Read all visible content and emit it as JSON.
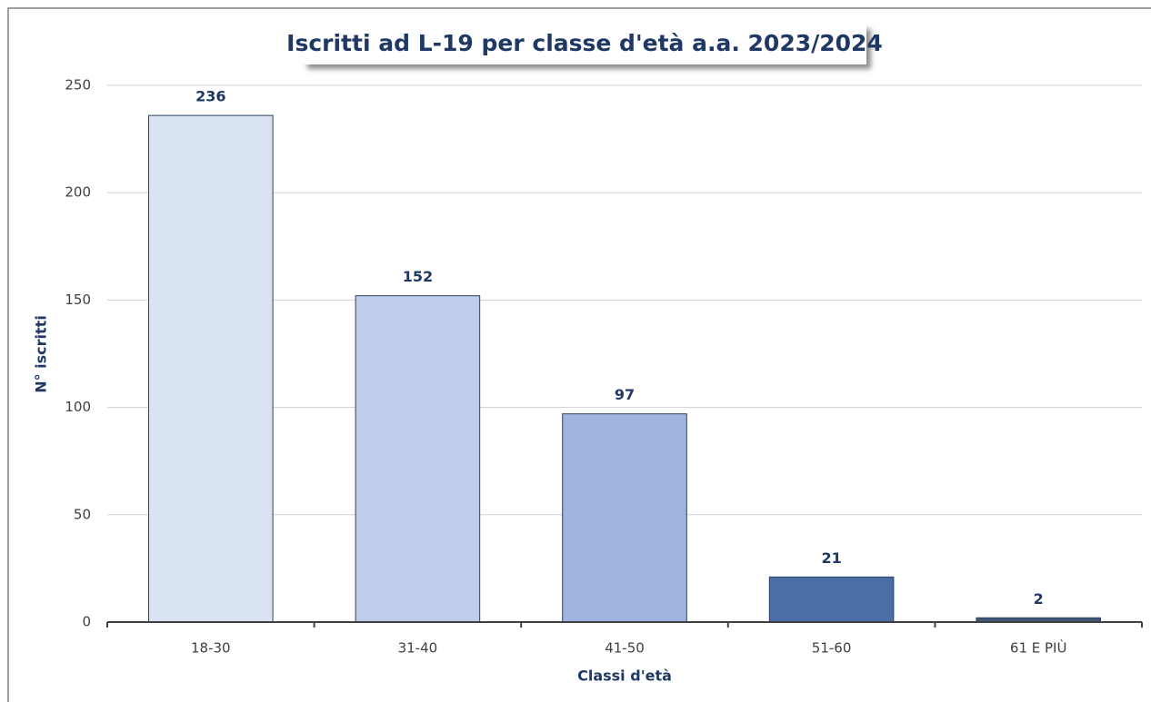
{
  "chart_data": {
    "type": "bar",
    "title": "Iscritti ad L-19 per classe d'età a.a. 2023/2024",
    "x_label": "Classi d'età",
    "y_label": "N° iscritti",
    "categories": [
      "18-30",
      "31-40",
      "41-50",
      "51-60",
      "61 E PIÙ"
    ],
    "values": [
      236,
      152,
      97,
      21,
      2
    ],
    "colors": [
      "#dae3f3",
      "#bdcdeb",
      "#9fb5e0",
      "#4a6ea6",
      "#3e5575"
    ],
    "ylim": [
      0,
      250
    ],
    "yticks": [
      0,
      50,
      100,
      150,
      200,
      250
    ],
    "grid": true
  }
}
